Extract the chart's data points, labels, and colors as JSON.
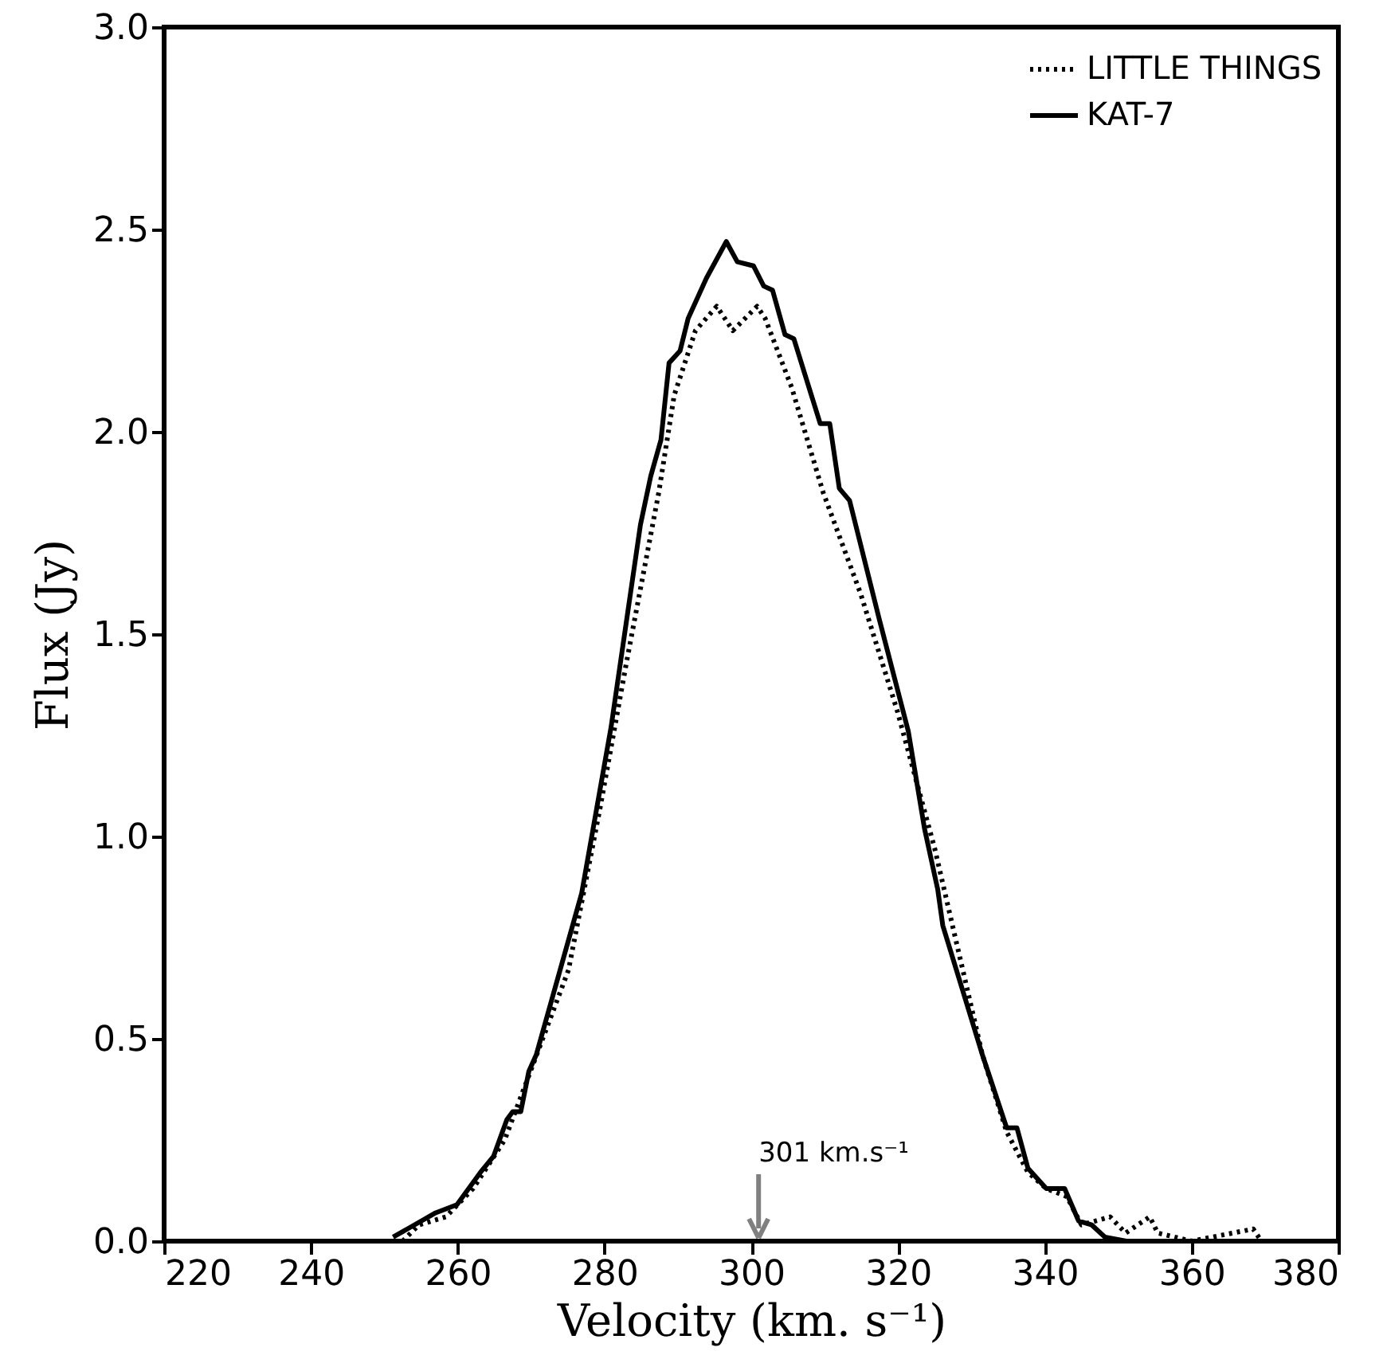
{
  "chart_data": {
    "type": "line",
    "xlabel": "Velocity (km. s⁻¹)",
    "ylabel": "Flux (Jy)",
    "xlim": [
      220,
      380
    ],
    "xticks": [
      220,
      240,
      260,
      280,
      300,
      320,
      340,
      360,
      380
    ],
    "ylim": [
      0,
      3.0
    ],
    "yticks": [
      {
        "value": 0,
        "label": "0.0"
      },
      {
        "value": 0.5,
        "label": "0.5"
      },
      {
        "value": 1,
        "label": "1.0"
      },
      {
        "value": 1.5,
        "label": "1.5"
      },
      {
        "value": 2,
        "label": "2.0"
      },
      {
        "value": 2.5,
        "label": "2.5"
      },
      {
        "value": 3,
        "label": "3.0"
      }
    ],
    "grid": false,
    "legend": "top right",
    "marker": "none",
    "series": [
      {
        "name": "LITTLE THINGS",
        "color": "#000000",
        "line_style": "dotted",
        "x": [
          252.5,
          254.7,
          258.4,
          262.1,
          266.4,
          275.1,
          279.4,
          283.0,
          287.4,
          289.5,
          292.4,
          295.3,
          297.5,
          300.8,
          301.9,
          305.5,
          309.8,
          314.9,
          319.9,
          325.0,
          331.5,
          334.8,
          337.7,
          340.2,
          343.0,
          345.0,
          348.9,
          351.0,
          354.3,
          355.4,
          360.0,
          368.4,
          369.5
        ],
        "values": [
          0,
          0.04,
          0.06,
          0.13,
          0.25,
          0.67,
          1.07,
          1.43,
          1.85,
          2.09,
          2.25,
          2.31,
          2.25,
          2.31,
          2.28,
          2.11,
          1.85,
          1.6,
          1.31,
          0.97,
          0.46,
          0.27,
          0.17,
          0.13,
          0.11,
          0.04,
          0.06,
          0.02,
          0.06,
          0.02,
          0,
          0.03,
          0
        ]
      },
      {
        "name": "KAT-7",
        "color": "#000000",
        "line_style": "solid",
        "x": [
          251.2,
          257.0,
          259.9,
          263.1,
          264.9,
          266.7,
          267.5,
          268.6,
          269.7,
          270.7,
          276.9,
          280.9,
          284.9,
          286.3,
          287.7,
          288.8,
          290.3,
          291.4,
          293.9,
          296.6,
          298.1,
          300.3,
          301.7,
          302.9,
          304.6,
          305.8,
          309.4,
          310.7,
          312.0,
          313.4,
          317.4,
          321.4,
          323.6,
          325.4,
          326.1,
          331.5,
          334.8,
          336.2,
          337.7,
          340.2,
          342.7,
          344.6,
          346.4,
          348.2,
          351.1
        ],
        "values": [
          0.01,
          0.07,
          0.09,
          0.17,
          0.21,
          0.3,
          0.32,
          0.32,
          0.42,
          0.46,
          0.86,
          1.27,
          1.77,
          1.89,
          1.98,
          2.17,
          2.2,
          2.28,
          2.38,
          2.47,
          2.42,
          2.41,
          2.36,
          2.35,
          2.24,
          2.23,
          2.02,
          2.02,
          1.86,
          1.83,
          1.54,
          1.26,
          1.02,
          0.87,
          0.78,
          0.46,
          0.28,
          0.28,
          0.18,
          0.13,
          0.13,
          0.05,
          0.04,
          0.01,
          0.0
        ]
      }
    ],
    "ref_lines": [
      {
        "axis": "x",
        "value": 301,
        "label": "301 km.s⁻¹",
        "color": "#808080"
      }
    ]
  }
}
